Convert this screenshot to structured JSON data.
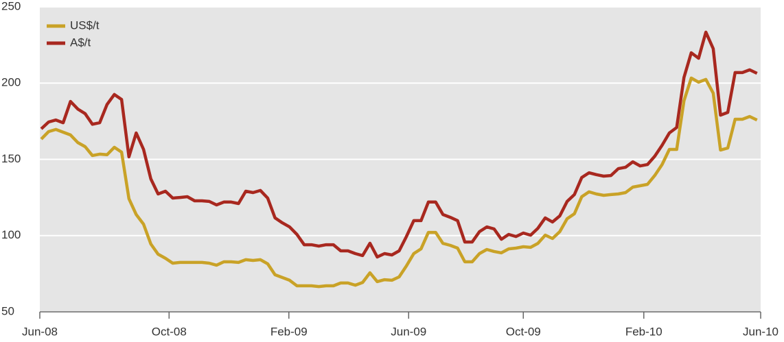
{
  "chart_data": {
    "type": "line",
    "x": [
      0,
      1,
      2,
      3,
      4,
      5,
      6,
      7,
      8,
      9,
      10,
      11,
      12,
      13,
      14,
      15,
      16,
      17,
      18,
      19,
      20,
      21,
      22,
      23,
      24,
      25,
      26,
      27,
      28,
      29,
      30,
      31,
      32,
      33,
      34,
      35,
      36,
      37,
      38,
      39,
      40,
      41,
      42,
      43,
      44,
      45,
      46,
      47,
      48,
      49,
      50,
      51,
      52,
      53,
      54,
      55,
      56,
      57,
      58,
      59,
      60,
      61,
      62,
      63,
      64,
      65,
      66,
      67,
      68,
      69,
      70,
      71,
      72,
      73,
      74,
      75,
      76,
      77,
      78,
      79,
      80,
      81,
      82,
      83,
      84,
      85,
      86,
      87,
      88,
      89,
      90,
      91,
      92,
      93,
      94,
      95,
      96,
      97,
      98
    ],
    "series": [
      {
        "name": "US$/t",
        "color": "#c9a227",
        "values": [
          163.3,
          168.2,
          169.6,
          167.8,
          166,
          161,
          158.3,
          152.5,
          153.4,
          153,
          157.9,
          154.7,
          124.2,
          113.8,
          107.5,
          94.5,
          87.8,
          85.1,
          81.9,
          82.4,
          82.4,
          82.4,
          82.4,
          81.9,
          80.6,
          82.8,
          82.8,
          82.4,
          84.2,
          83.7,
          84.2,
          81.5,
          74.3,
          72.5,
          70.7,
          67.1,
          67.1,
          67.1,
          66.6,
          67.1,
          67.1,
          68.9,
          68.9,
          67.5,
          69.3,
          75.6,
          69.8,
          71.1,
          70.7,
          72.9,
          80.1,
          88.2,
          91.3,
          102.1,
          102.1,
          94.9,
          93.6,
          91.8,
          82.8,
          82.8,
          88.2,
          90.9,
          89.6,
          88.7,
          91.3,
          91.8,
          92.7,
          92.3,
          94.9,
          100.3,
          98.1,
          102.6,
          111.1,
          114.3,
          125.5,
          128.7,
          127.3,
          126.4,
          126.9,
          127.3,
          128.2,
          131.8,
          132.7,
          133.6,
          139.4,
          146.6,
          156.5,
          156.5,
          188.4,
          203.3,
          200.6,
          202.4,
          193.4,
          156.1,
          157.4,
          176.3,
          176.3,
          178.1,
          175.8
        ]
      },
      {
        "name": "A$/t",
        "color": "#a8281f",
        "values": [
          170,
          174.5,
          175.8,
          174,
          188,
          183,
          180,
          173,
          174,
          186,
          192.5,
          189.3,
          151.6,
          167.3,
          156.5,
          137.2,
          127.3,
          129.1,
          124.6,
          125,
          125.5,
          122.8,
          122.8,
          122.4,
          120.1,
          122,
          122,
          121,
          129.1,
          128.2,
          129.6,
          124.6,
          111.6,
          108.4,
          105.7,
          100.8,
          94,
          94,
          93.1,
          94,
          94,
          90,
          90,
          88.2,
          86.9,
          95,
          86,
          88.2,
          87.3,
          90,
          99.4,
          109.8,
          109.8,
          122,
          122,
          113.8,
          112,
          109.8,
          95.8,
          95.8,
          102.6,
          105.7,
          104.4,
          97.6,
          100.8,
          99.4,
          101.7,
          100.3,
          104.8,
          111.6,
          108.9,
          112.9,
          122.4,
          126.9,
          138.1,
          141.2,
          140,
          139,
          139.4,
          143.9,
          144.8,
          148.4,
          145.7,
          146.6,
          152,
          159.2,
          167.3,
          170.9,
          203.7,
          219.9,
          216.3,
          233.4,
          222.6,
          179,
          180.8,
          206.9,
          206.9,
          208.7,
          206.4
        ]
      }
    ],
    "xlim": [
      -0.2,
      98.5
    ],
    "xticks": [
      {
        "value": -0.2,
        "label": "Jun-08"
      },
      {
        "value": 17.5,
        "label": "Oct-08"
      },
      {
        "value": 33.9,
        "label": "Feb-09"
      },
      {
        "value": 50.3,
        "label": "Jun-09"
      },
      {
        "value": 66,
        "label": "Oct-09"
      },
      {
        "value": 82.5,
        "label": "Feb-10"
      },
      {
        "value": 98.5,
        "label": "Jun-10"
      }
    ],
    "ylim": [
      50,
      250
    ],
    "yticks": [
      50,
      100,
      150,
      200,
      250
    ],
    "grid": true,
    "legend": "top-left"
  }
}
